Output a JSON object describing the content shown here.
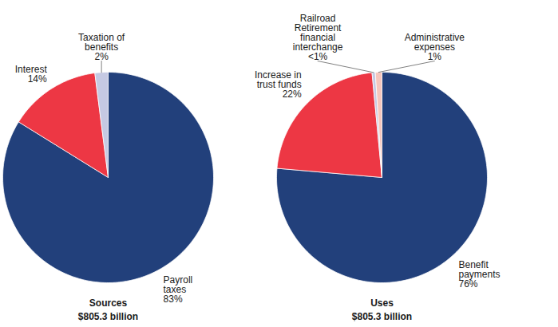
{
  "chart_data": [
    {
      "type": "pie",
      "title": "Sources",
      "subtitle": "$805.3 billion",
      "categories": [
        "Payroll taxes",
        "Interest",
        "Taxation of benefits"
      ],
      "values": [
        83,
        14,
        2
      ],
      "value_labels": [
        "83%",
        "14%",
        "2%"
      ],
      "colors": [
        "#22407b",
        "#ed3744",
        "#c5c9e3"
      ],
      "data_labels": true
    },
    {
      "type": "pie",
      "title": "Uses",
      "subtitle": "$805.3 billion",
      "categories": [
        "Benefit payments",
        "Increase in trust funds",
        "Railroad Retirement financial interchange",
        "Administrative expenses"
      ],
      "values": [
        76,
        22,
        0.5,
        1
      ],
      "value_labels": [
        "76%",
        "22%",
        "<1%",
        "1%"
      ],
      "colors": [
        "#22407b",
        "#ed3744",
        "#c5c9e3",
        "#f6c6bd"
      ],
      "data_labels": true
    }
  ]
}
